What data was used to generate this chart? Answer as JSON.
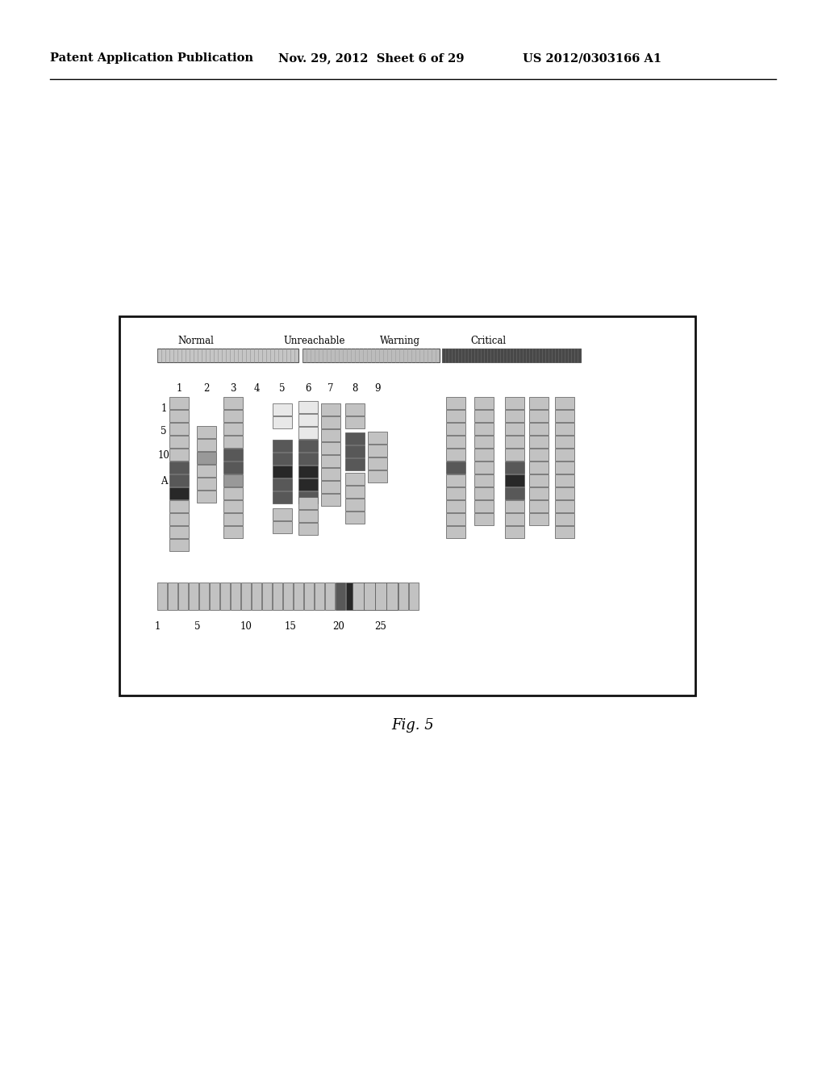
{
  "header_left": "Patent Application Publication",
  "header_mid": "Nov. 29, 2012  Sheet 6 of 29",
  "header_right": "US 2012/0303166 A1",
  "footer_label": "Fig. 5",
  "legend_labels": [
    "Normal",
    "Unreachable",
    "Warning",
    "Critical"
  ],
  "col_labels": [
    "1",
    "2",
    "3",
    "4",
    "5",
    "6",
    "7",
    "8",
    "9"
  ],
  "row_labels": [
    "1",
    "5",
    "10",
    "A"
  ],
  "bottom_row_labels": [
    "1",
    "5",
    "10",
    "15",
    "20",
    "25"
  ],
  "bg_color": "#ffffff",
  "frame_color": "#111111",
  "light_gray": "#c0c0c0",
  "medium_gray": "#909090",
  "dark_gray": "#505050",
  "very_dark": "#222222"
}
